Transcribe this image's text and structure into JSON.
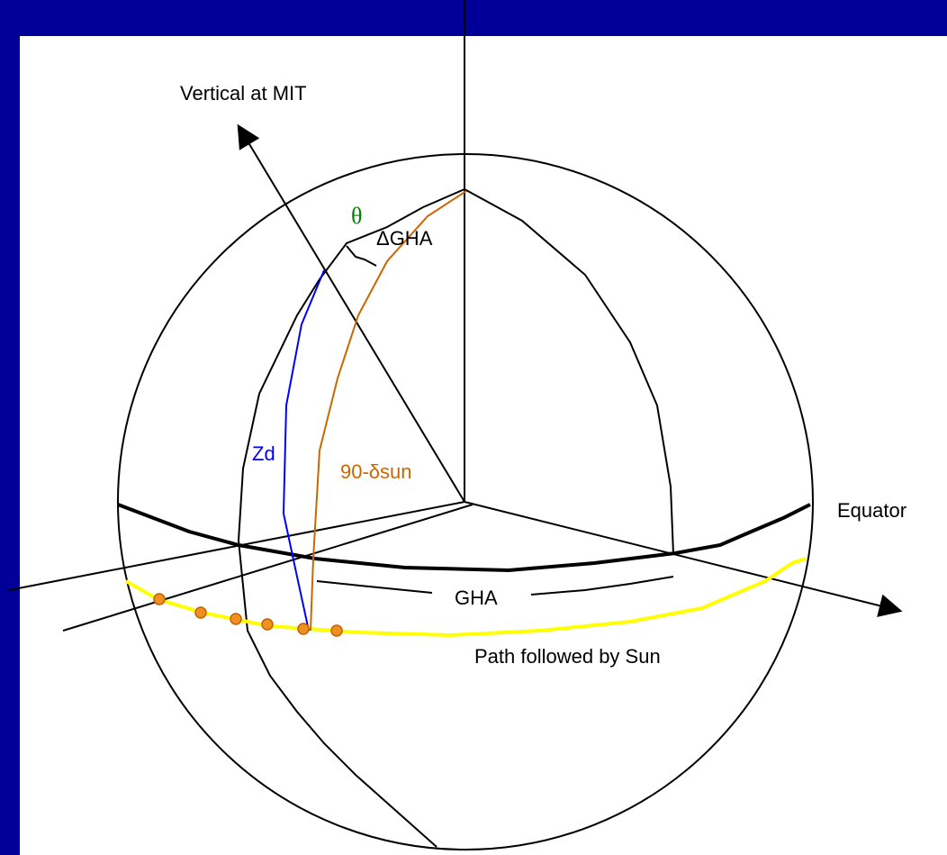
{
  "labels": {
    "vertical": "Vertical at MIT",
    "theta": "θ",
    "delta_gha": "ΔGHA",
    "zd": "Zd",
    "colatitude": "90-δsun",
    "equator": "Equator",
    "gha": "GHA",
    "sun_path": "Path followed by Sun"
  }
}
